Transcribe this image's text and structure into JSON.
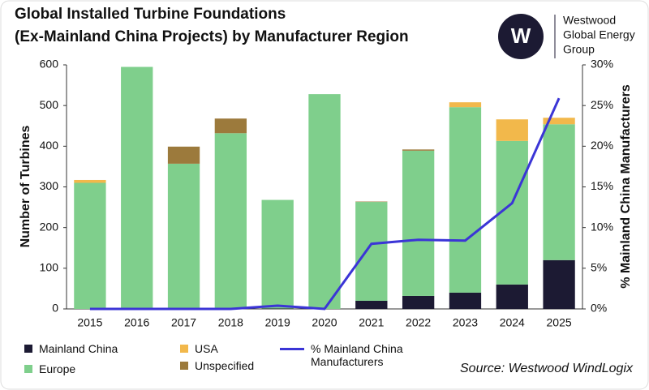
{
  "chart_data": {
    "type": "bar",
    "title": [
      "Global Installed Turbine Foundations",
      "(Ex-Mainland China Projects) by Manufacturer Region"
    ],
    "logo": [
      "Westwood",
      "Global Energy",
      "Group"
    ],
    "source": "Source: Westwood WindLogix",
    "ylabel": "Number of Turbines",
    "y2label": "% Mainland China Manufacturers",
    "categories": [
      "2015",
      "2016",
      "2017",
      "2018",
      "2019",
      "2020",
      "2021",
      "2022",
      "2023",
      "2024",
      "2025"
    ],
    "series": [
      {
        "name": "Mainland China",
        "color": "#1c1a33",
        "values": [
          0,
          0,
          0,
          0,
          1,
          0,
          20,
          32,
          40,
          60,
          120
        ]
      },
      {
        "name": "Europe",
        "color": "#7fcf8c",
        "values": [
          310,
          595,
          357,
          432,
          267,
          528,
          243,
          357,
          456,
          353,
          334
        ]
      },
      {
        "name": "USA",
        "color": "#f2b84b",
        "values": [
          7,
          0,
          0,
          0,
          0,
          0,
          0,
          0,
          12,
          53,
          16
        ]
      },
      {
        "name": "Unspecified",
        "color": "#9c7a3c",
        "values": [
          0,
          0,
          42,
          36,
          0,
          0,
          1,
          3,
          0,
          0,
          0
        ]
      },
      {
        "name": "% Mainland China Manufacturers",
        "color": "#3b35d6",
        "type": "line",
        "axis": "y2",
        "values": [
          0,
          0,
          0,
          0,
          0.4,
          0,
          8.0,
          8.5,
          8.4,
          13,
          25.9
        ]
      }
    ],
    "ylim": [
      0,
      600
    ],
    "yticks": [
      0,
      100,
      200,
      300,
      400,
      500,
      600
    ],
    "y2lim": [
      0,
      30
    ],
    "y2ticks": [
      {
        "value": 0,
        "label": "0%"
      },
      {
        "value": 5,
        "label": "5%"
      },
      {
        "value": 10,
        "label": "10%"
      },
      {
        "value": 15,
        "label": "15%"
      },
      {
        "value": 20,
        "label": "20%"
      },
      {
        "value": 25,
        "label": "25%"
      },
      {
        "value": 30,
        "label": "30%"
      }
    ]
  }
}
